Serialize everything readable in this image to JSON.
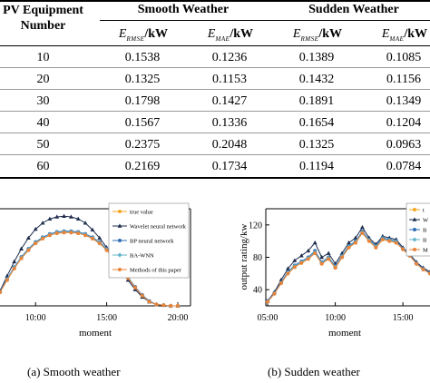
{
  "table": {
    "header_col": [
      "PV Equipment",
      "Number"
    ],
    "groups": [
      "Smooth Weather",
      "Sudden Weather"
    ],
    "subheaders": [
      {
        "sym": "E",
        "sub": "RMSE",
        "unit": "/kW"
      },
      {
        "sym": "E",
        "sub": "MAE",
        "unit": "/kW"
      },
      {
        "sym": "E",
        "sub": "RMSE",
        "unit": "/kW"
      },
      {
        "sym": "E",
        "sub": "MAE",
        "unit": "/kW"
      }
    ],
    "rows": [
      {
        "n": "10",
        "v": [
          "0.1538",
          "0.1236",
          "0.1389",
          "0.1085"
        ]
      },
      {
        "n": "20",
        "v": [
          "0.1325",
          "0.1153",
          "0.1432",
          "0.1156"
        ]
      },
      {
        "n": "30",
        "v": [
          "0.1798",
          "0.1427",
          "0.1891",
          "0.1349"
        ]
      },
      {
        "n": "40",
        "v": [
          "0.1567",
          "0.1336",
          "0.1654",
          "0.1204"
        ]
      },
      {
        "n": "50",
        "v": [
          "0.2375",
          "0.2048",
          "0.1325",
          "0.0963"
        ]
      },
      {
        "n": "60",
        "v": [
          "0.2169",
          "0.1734",
          "0.1194",
          "0.0784"
        ]
      }
    ]
  },
  "figures": {
    "left": {
      "caption": "(a) Smooth weather",
      "xlabel": "moment",
      "xticks": [
        "10:00",
        "15:00",
        "20:00"
      ],
      "legend": [
        "true value",
        "Wavelet neural network",
        "BP neural network",
        "BA-WNN",
        "Methods of this paper"
      ]
    },
    "right": {
      "caption": "(b) Sudden weather",
      "xlabel": "moment",
      "ylabel": "output rating/kw",
      "xticks": [
        "05:00",
        "10:00",
        "15:00"
      ],
      "yticks": [
        "40",
        "80",
        "120"
      ],
      "legend_visible": [
        "t",
        "W",
        "B",
        "B",
        "M"
      ]
    }
  },
  "colors": {
    "true_value": "#f5a623",
    "wavelet": "#1f2d4d",
    "bp": "#2f6fb5",
    "bawnn": "#5fb3c9",
    "method": "#e8833a"
  },
  "chart_data": [
    {
      "type": "line",
      "title": "",
      "xlabel": "moment",
      "ylabel": "",
      "x": [
        "07:30",
        "08:00",
        "08:30",
        "09:00",
        "09:30",
        "10:00",
        "10:30",
        "11:00",
        "11:30",
        "12:00",
        "12:30",
        "13:00",
        "13:30",
        "14:00",
        "14:30",
        "15:00",
        "15:30",
        "16:00",
        "16:30",
        "17:00",
        "17:30",
        "18:00",
        "18:30",
        "19:00",
        "19:30",
        "20:00"
      ],
      "series": [
        {
          "name": "true value",
          "values": [
            20,
            38,
            55,
            70,
            82,
            92,
            99,
            104,
            107,
            108,
            108,
            107,
            104,
            99,
            92,
            82,
            70,
            56,
            41,
            27,
            15,
            6,
            2,
            1,
            0,
            0
          ]
        },
        {
          "name": "Wavelet neural network",
          "values": [
            22,
            44,
            65,
            84,
            100,
            113,
            122,
            128,
            131,
            132,
            131,
            128,
            122,
            112,
            100,
            86,
            70,
            54,
            38,
            24,
            13,
            6,
            2,
            1,
            0,
            0
          ]
        },
        {
          "name": "BP neural network",
          "values": [
            21,
            40,
            57,
            72,
            84,
            94,
            101,
            106,
            109,
            110,
            110,
            109,
            106,
            101,
            94,
            84,
            72,
            57,
            42,
            28,
            16,
            7,
            2,
            1,
            0,
            0
          ]
        },
        {
          "name": "BA-WNN",
          "values": [
            20,
            39,
            56,
            71,
            83,
            93,
            100,
            105,
            108,
            109,
            109,
            108,
            105,
            100,
            93,
            83,
            71,
            56,
            41,
            27,
            15,
            6,
            2,
            1,
            0,
            0
          ]
        },
        {
          "name": "Methods of this paper",
          "values": [
            20,
            38,
            55,
            70,
            82,
            92,
            99,
            104,
            107,
            108,
            108,
            107,
            104,
            99,
            92,
            82,
            70,
            56,
            41,
            27,
            15,
            6,
            2,
            1,
            0,
            0
          ]
        }
      ]
    },
    {
      "type": "line",
      "title": "",
      "xlabel": "moment",
      "ylabel": "output rating/kw",
      "ylim": [
        20,
        140
      ],
      "x": [
        "05:00",
        "05:30",
        "06:00",
        "06:30",
        "07:00",
        "07:30",
        "08:00",
        "08:30",
        "09:00",
        "09:30",
        "10:00",
        "10:30",
        "11:00",
        "11:30",
        "12:00",
        "12:30",
        "13:00",
        "13:30",
        "14:00",
        "14:30",
        "15:00",
        "15:30",
        "16:00",
        "16:30",
        "17:00"
      ],
      "series": [
        {
          "name": "",
          "values": [
            25,
            35,
            48,
            60,
            68,
            73,
            78,
            85,
            72,
            78,
            67,
            80,
            92,
            98,
            110,
            100,
            92,
            102,
            100,
            98,
            90,
            82,
            72,
            65,
            60
          ]
        },
        {
          "name": "",
          "values": [
            26,
            37,
            52,
            66,
            76,
            82,
            88,
            98,
            80,
            85,
            72,
            85,
            98,
            104,
            117,
            104,
            96,
            106,
            104,
            102,
            92,
            84,
            74,
            67,
            62
          ]
        },
        {
          "name": "",
          "values": [
            26,
            36,
            49,
            62,
            70,
            75,
            80,
            88,
            74,
            80,
            69,
            82,
            94,
            100,
            112,
            102,
            94,
            104,
            102,
            100,
            91,
            83,
            73,
            66,
            61
          ]
        },
        {
          "name": "",
          "values": [
            25,
            35,
            48,
            61,
            69,
            74,
            79,
            86,
            73,
            79,
            68,
            81,
            93,
            99,
            111,
            101,
            93,
            103,
            101,
            99,
            90,
            82,
            72,
            65,
            60
          ]
        },
        {
          "name": "",
          "values": [
            25,
            35,
            48,
            60,
            68,
            73,
            78,
            85,
            72,
            78,
            67,
            80,
            92,
            98,
            110,
            100,
            92,
            102,
            100,
            98,
            90,
            82,
            72,
            65,
            60
          ]
        }
      ]
    }
  ]
}
